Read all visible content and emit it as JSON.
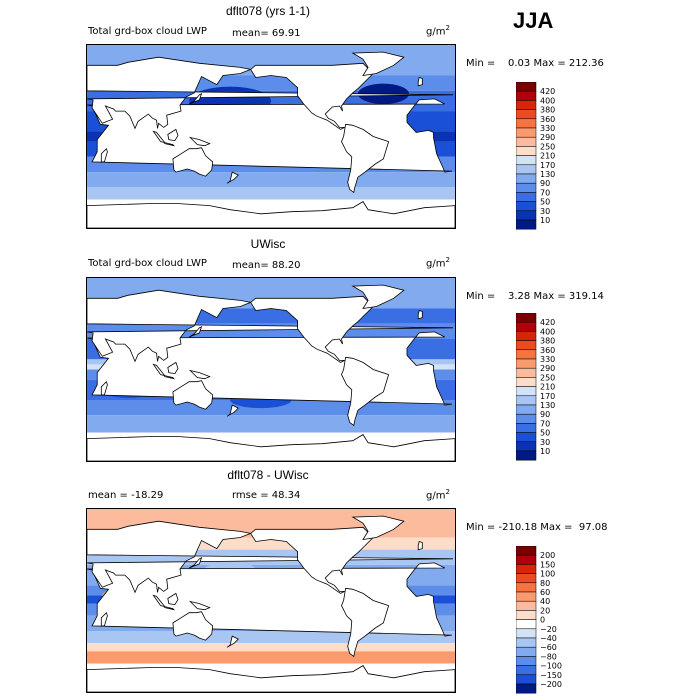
{
  "season": "JJA",
  "colors": {
    "pos10": "#7b0000",
    "pos9": "#b2000a",
    "pos8": "#d7250a",
    "pos7": "#ee4a1f",
    "pos6": "#f6743f",
    "pos5": "#fb9a6d",
    "pos4": "#fcbb9c",
    "pos3": "#fddcc8",
    "white": "#ffffff",
    "neg3": "#d2e2f7",
    "neg4": "#a9c6f3",
    "neg5": "#82aaef",
    "neg6": "#5d8deb",
    "neg7": "#3a6fe3",
    "neg8": "#1a50d6",
    "neg9": "#0a33b4",
    "neg10": "#001a85",
    "land": "#ffffff"
  },
  "panels": [
    {
      "title": "dflt078 (yrs 1-1)",
      "subtitle": "Total grd-box cloud LWP",
      "stat1": "mean=  69.91",
      "stat2": "",
      "units": "g/m",
      "units_sup": "2",
      "minmax": "Min =    0.03 Max = 212.36",
      "levels": [
        "420",
        "400",
        "380",
        "360",
        "330",
        "290",
        "250",
        "210",
        "170",
        "130",
        "90",
        "70",
        "50",
        "30",
        "10"
      ]
    },
    {
      "title": "UWisc",
      "subtitle": "Total grd-box cloud LWP",
      "stat1": "mean=  88.20",
      "stat2": "",
      "units": "g/m",
      "units_sup": "2",
      "minmax": "Min =    3.28 Max = 319.14",
      "levels": [
        "420",
        "400",
        "380",
        "360",
        "330",
        "290",
        "250",
        "210",
        "170",
        "130",
        "90",
        "70",
        "50",
        "30",
        "10"
      ]
    },
    {
      "title": "dflt078 - UWisc",
      "subtitle": "",
      "stat1": "mean = -18.29",
      "stat2": "rmse =  48.34",
      "units": "g/m",
      "units_sup": "2",
      "minmax": "Min = -210.18 Max =  97.08",
      "levels": [
        "200",
        "150",
        "100",
        "80",
        "60",
        "40",
        "20",
        "0",
        "−20",
        "−40",
        "−60",
        "−80",
        "−100",
        "−150",
        "−200"
      ]
    }
  ]
}
